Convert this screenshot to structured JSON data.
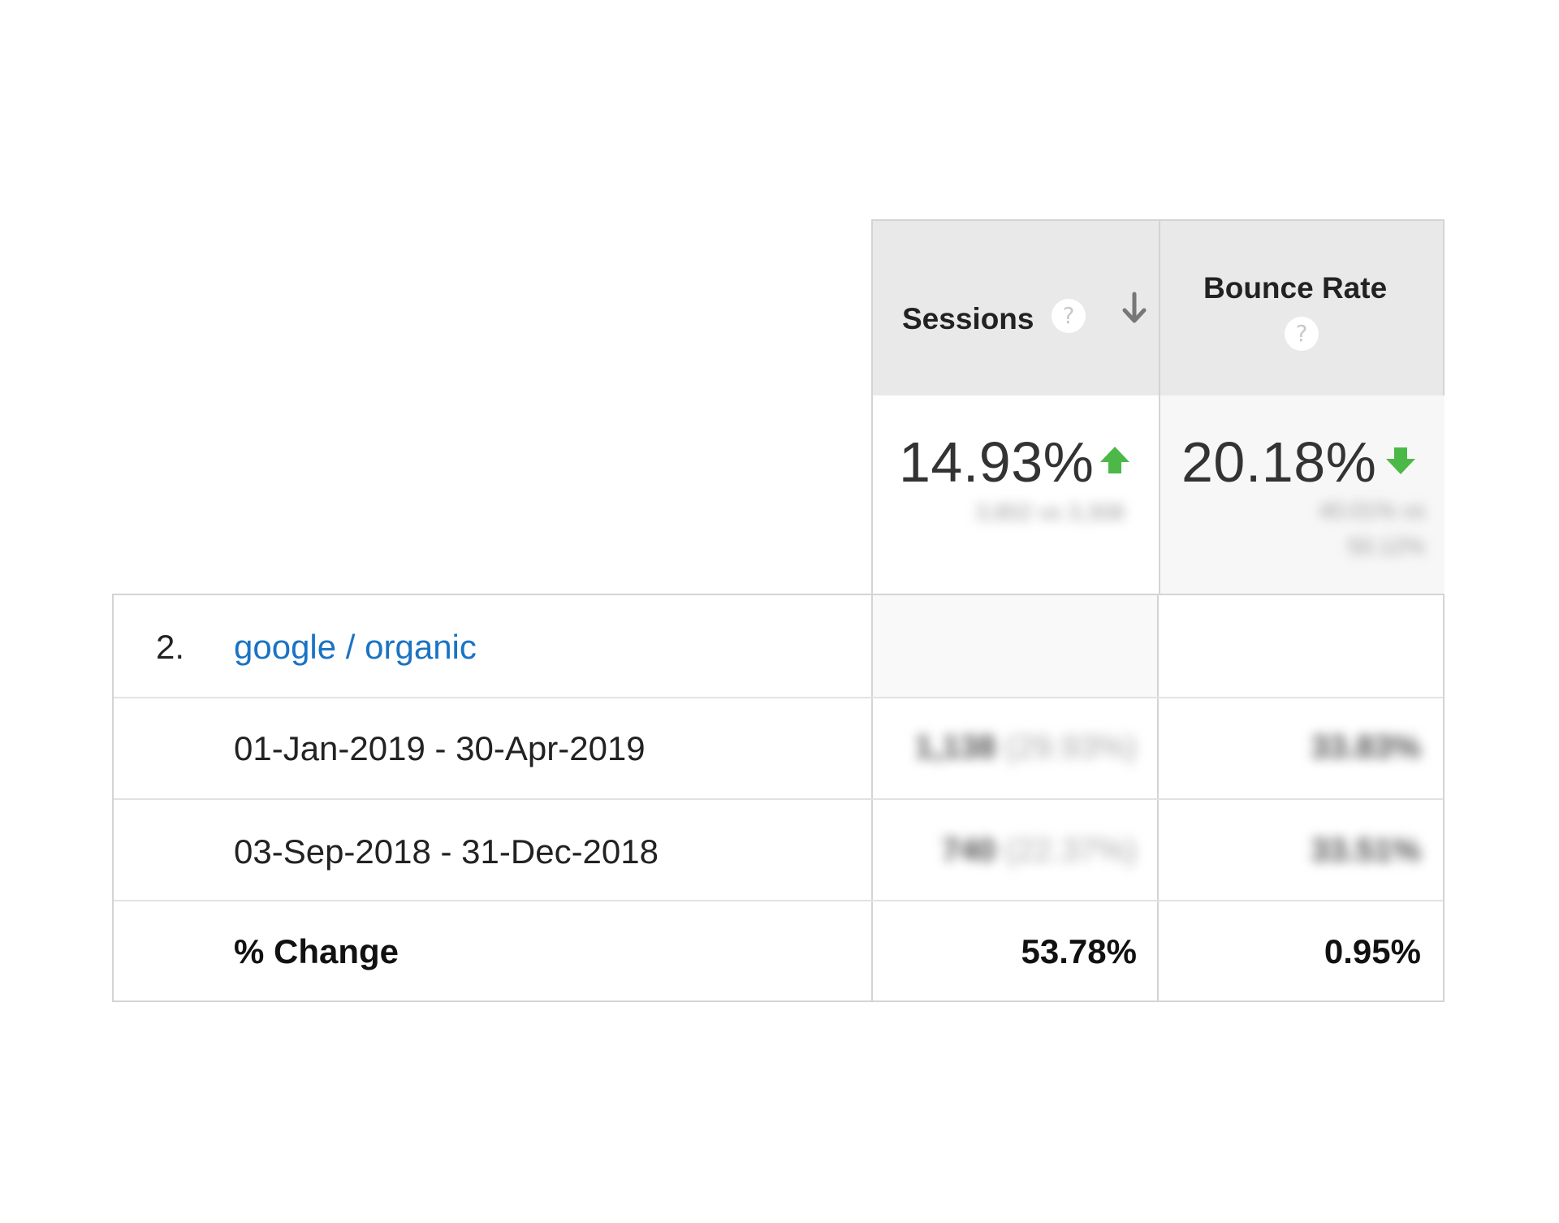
{
  "columns": {
    "sessions": {
      "title": "Sessions",
      "help_icon": "question-mark-icon",
      "sort_icon": "sort-descending-arrow-icon",
      "summary_change": "14.93%",
      "trend_icon": "green-up-arrow-icon",
      "summary_detail": "3,802 vs 3,308"
    },
    "bounce_rate": {
      "title": "Bounce Rate",
      "help_icon": "question-mark-icon",
      "summary_change": "20.18%",
      "trend_icon": "green-down-arrow-icon",
      "summary_detail_line1": "40.01% vs",
      "summary_detail_line2": "50.12%"
    }
  },
  "row_group": {
    "index": "2.",
    "source_medium": "google / organic",
    "rows": [
      {
        "label": "01-Jan-2019 - 30-Apr-2019",
        "sessions_value": "1,138",
        "sessions_share": "(29.93%)",
        "bounce_rate": "33.83%"
      },
      {
        "label": "03-Sep-2018 - 31-Dec-2018",
        "sessions_value": "740",
        "sessions_share": "(22.37%)",
        "bounce_rate": "33.51%"
      }
    ],
    "change": {
      "label": "% Change",
      "sessions": "53.78%",
      "bounce_rate": "0.95%"
    }
  },
  "colors": {
    "link": "#1a73c4",
    "trend_green": "#4cb848",
    "header_bg": "#e9e9e9",
    "border": "#d4d4d4"
  }
}
